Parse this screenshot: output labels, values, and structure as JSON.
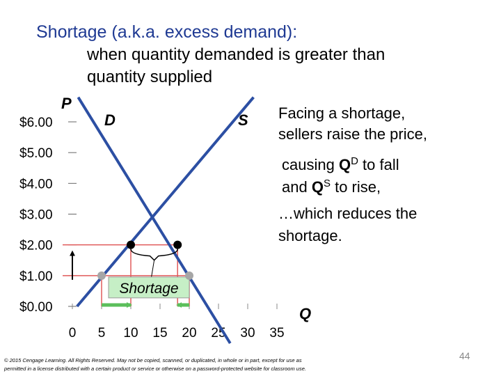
{
  "chart_data": {
    "type": "line",
    "title": "Shortage (a.k.a. excess demand):",
    "subtitle": [
      "when quantity demanded is greater than",
      "quantity supplied"
    ],
    "y_label": "P",
    "x_label": "Q",
    "xlim": [
      0,
      35
    ],
    "ylim": [
      0,
      6
    ],
    "xticks": [
      0,
      5,
      10,
      15,
      20,
      25,
      30,
      35
    ],
    "yticks": [
      {
        "value": 0,
        "label": "$0.00"
      },
      {
        "value": 1,
        "label": "$1.00"
      },
      {
        "value": 2,
        "label": "$2.00"
      },
      {
        "value": 3,
        "label": "$3.00"
      },
      {
        "value": 4,
        "label": "$4.00"
      },
      {
        "value": 5,
        "label": "$5.00"
      },
      {
        "value": 6,
        "label": "$6.00"
      }
    ],
    "series": [
      {
        "name": "D",
        "color": "#2c4fa3",
        "x": [
          1,
          27
        ],
        "values": [
          6.8,
          -1.2
        ]
      },
      {
        "name": "S",
        "color": "#2c4fa3",
        "x": [
          0.8,
          31
        ],
        "values": [
          0,
          6.8
        ]
      }
    ],
    "new_price_points": {
      "color": "#000000",
      "x": [
        10,
        18
      ],
      "values": [
        2,
        2
      ]
    },
    "old_price_points": {
      "color": "#a6a6a6",
      "x": [
        5,
        20
      ],
      "values": [
        1,
        1
      ]
    },
    "shortage_label": "Shortage",
    "annotations": [
      [
        "Facing a shortage,",
        "sellers raise the price,"
      ],
      [
        [
          "causing ",
          "Q",
          "D",
          " to fall"
        ],
        [
          "and ",
          "Q",
          "S",
          " to rise,"
        ]
      ],
      [
        "…which reduces the",
        "shortage."
      ]
    ],
    "copyright": [
      "© 2015 Cengage Learning. All Rights Reserved. May not be copied, scanned, or duplicated, in whole or in part, except for use as",
      "permitted in a license distributed with a certain product or service or otherwise on a password-protected website for classroom use."
    ],
    "page_number": "44"
  }
}
